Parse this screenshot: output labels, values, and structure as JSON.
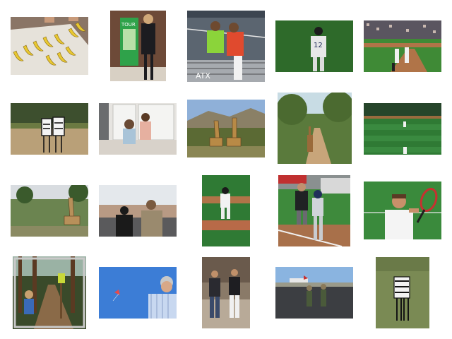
{
  "gallery": {
    "images": [
      {
        "subject": "bananas-on-table"
      },
      {
        "subject": "woman-at-tourist-kiosk"
      },
      {
        "subject": "two-tennis-players-at-net"
      },
      {
        "subject": "baseball-player-number-12"
      },
      {
        "subject": "baseball-game-stadium"
      },
      {
        "subject": "zebras-in-savanna"
      },
      {
        "subject": "children-in-kitchen"
      },
      {
        "subject": "giraffes-in-grassland"
      },
      {
        "subject": "giraffe-on-forest-path"
      },
      {
        "subject": "baseball-outfield"
      },
      {
        "subject": "giraffe-among-trees"
      },
      {
        "subject": "tourists-photographing-city"
      },
      {
        "subject": "baseball-pitcher-on-mound"
      },
      {
        "subject": "baseball-umpire-and-player"
      },
      {
        "subject": "tennis-player-with-racket"
      },
      {
        "subject": "child-hiking-forest-trail"
      },
      {
        "subject": "man-flying-kite"
      },
      {
        "subject": "two-men-standing-on-street"
      },
      {
        "subject": "soldiers-on-airfield"
      },
      {
        "subject": "zebra-walking-in-grass"
      }
    ]
  }
}
